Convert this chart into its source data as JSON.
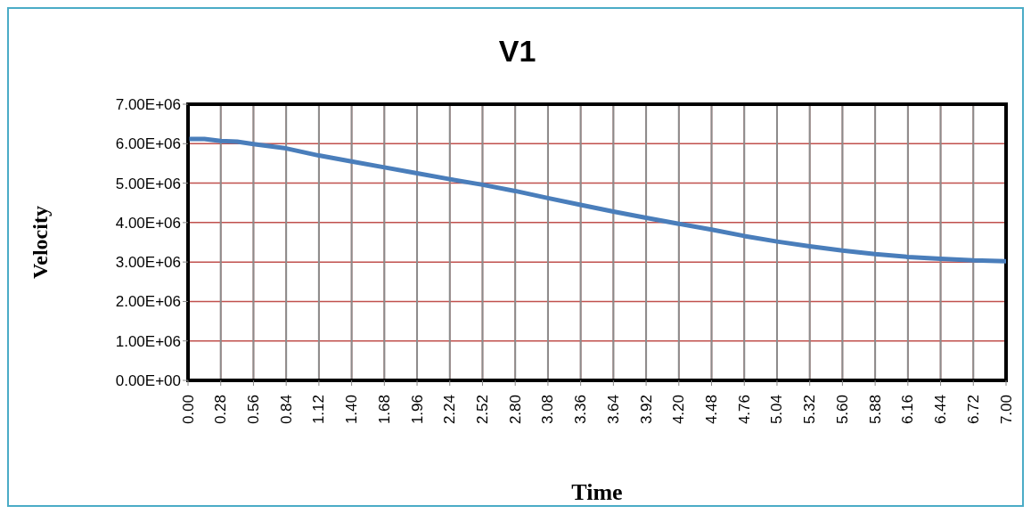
{
  "chart_data": {
    "type": "line",
    "title": "V1",
    "xlabel": "Time",
    "ylabel": "Velocity",
    "x": [
      0,
      0.14,
      0.28,
      0.42,
      0.56,
      0.84,
      1.12,
      1.4,
      1.68,
      1.96,
      2.24,
      2.52,
      2.8,
      3.08,
      3.36,
      3.64,
      3.92,
      4.2,
      4.48,
      4.76,
      5.04,
      5.32,
      5.6,
      5.88,
      6.16,
      6.44,
      6.72,
      7
    ],
    "series": [
      {
        "color": "#4a7ebb",
        "values": [
          6120000,
          6120000,
          6070000,
          6050000,
          5990000,
          5880000,
          5700000,
          5550000,
          5400000,
          5250000,
          5100000,
          4960000,
          4800000,
          4620000,
          4450000,
          4280000,
          4120000,
          3970000,
          3820000,
          3660000,
          3520000,
          3400000,
          3290000,
          3200000,
          3130000,
          3080000,
          3040000,
          3020000
        ]
      }
    ],
    "xlim": [
      0,
      7
    ],
    "ylim": [
      0,
      7000000
    ],
    "xticks": [
      {
        "value": 0,
        "label": "0.00"
      },
      {
        "value": 0.28,
        "label": "0.28"
      },
      {
        "value": 0.56,
        "label": "0.56"
      },
      {
        "value": 0.84,
        "label": "0.84"
      },
      {
        "value": 1.12,
        "label": "1.12"
      },
      {
        "value": 1.4,
        "label": "1.40"
      },
      {
        "value": 1.68,
        "label": "1.68"
      },
      {
        "value": 1.96,
        "label": "1.96"
      },
      {
        "value": 2.24,
        "label": "2.24"
      },
      {
        "value": 2.52,
        "label": "2.52"
      },
      {
        "value": 2.8,
        "label": "2.80"
      },
      {
        "value": 3.08,
        "label": "3.08"
      },
      {
        "value": 3.36,
        "label": "3.36"
      },
      {
        "value": 3.64,
        "label": "3.64"
      },
      {
        "value": 3.92,
        "label": "3.92"
      },
      {
        "value": 4.2,
        "label": "4.20"
      },
      {
        "value": 4.48,
        "label": "4.48"
      },
      {
        "value": 4.76,
        "label": "4.76"
      },
      {
        "value": 5.04,
        "label": "5.04"
      },
      {
        "value": 5.32,
        "label": "5.32"
      },
      {
        "value": 5.6,
        "label": "5.60"
      },
      {
        "value": 5.88,
        "label": "5.88"
      },
      {
        "value": 6.16,
        "label": "6.16"
      },
      {
        "value": 6.44,
        "label": "6.44"
      },
      {
        "value": 6.72,
        "label": "6.72"
      },
      {
        "value": 7,
        "label": "7.00"
      }
    ],
    "yticks": [
      {
        "value": 0,
        "label": "0.00E+00"
      },
      {
        "value": 1000000,
        "label": "1.00E+06"
      },
      {
        "value": 2000000,
        "label": "2.00E+06"
      },
      {
        "value": 3000000,
        "label": "3.00E+06"
      },
      {
        "value": 4000000,
        "label": "4.00E+06"
      },
      {
        "value": 5000000,
        "label": "5.00E+06"
      },
      {
        "value": 6000000,
        "label": "6.00E+06"
      },
      {
        "value": 7000000,
        "label": "7.00E+06"
      }
    ],
    "grid": true,
    "marker": "none",
    "line_style": "solid",
    "legend": false
  }
}
